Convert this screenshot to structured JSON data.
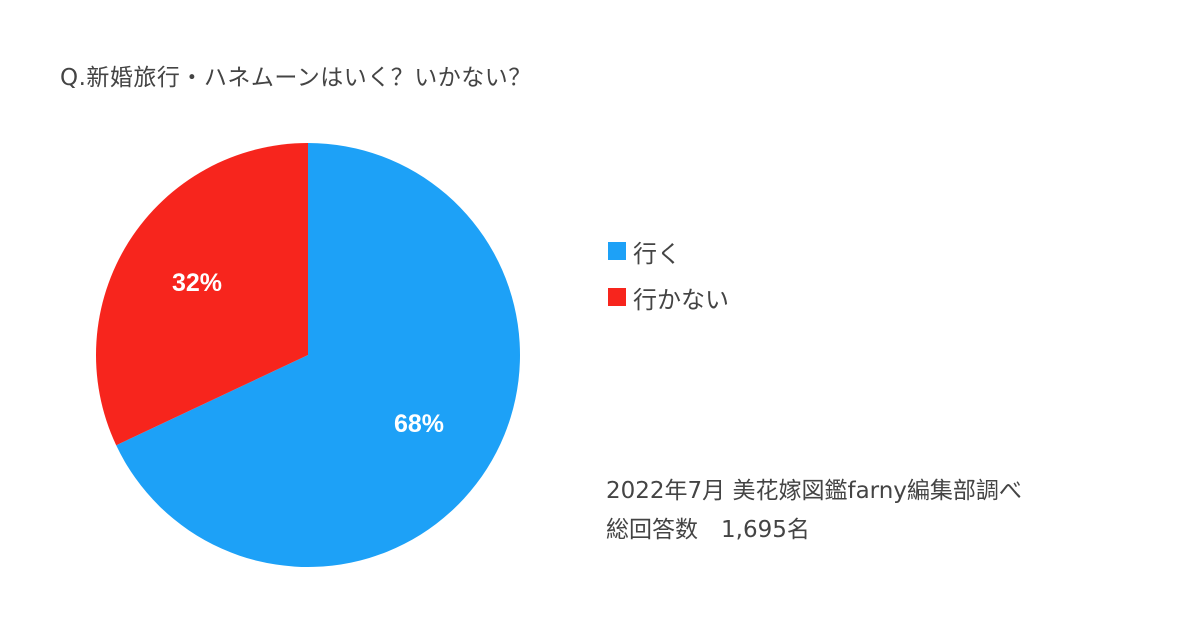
{
  "chart_data": {
    "type": "pie",
    "title": "Q.新婚旅行・ハネムーンはいく？いかない？",
    "slices": [
      {
        "label": "行く",
        "value": 68,
        "value_label": "68%",
        "color": "#1da1f7"
      },
      {
        "label": "行かない",
        "value": 32,
        "value_label": "32%",
        "color": "#f7251d"
      }
    ],
    "start_angle": "12 o'clock",
    "direction": "clockwise",
    "legend_position": "right"
  },
  "source": {
    "line1": "2022年7月  美花嫁図鑑farny編集部調べ",
    "line2": "総回答数　1,695名"
  }
}
